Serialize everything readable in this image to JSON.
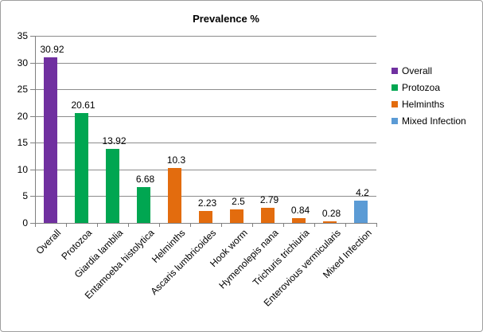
{
  "chart_data": {
    "type": "bar",
    "title": "Prevalence %",
    "xlabel": "",
    "ylabel": "",
    "categories": [
      "Overall",
      "Protozoa",
      "Giardia lamblia",
      "Entamoeba histolytica",
      "Helminths",
      "Ascaris lumbricoides",
      "Hook worm",
      "Hymenolepis nana",
      "Trichuris trichiuria",
      "Enterovious vermicularis",
      "Mixed Infection"
    ],
    "values": [
      30.92,
      20.61,
      13.92,
      6.68,
      10.3,
      2.23,
      2.5,
      2.79,
      0.84,
      0.28,
      4.2
    ],
    "bar_groups": [
      "Overall",
      "Protozoa",
      "Protozoa",
      "Protozoa",
      "Helminths",
      "Helminths",
      "Helminths",
      "Helminths",
      "Helminths",
      "Helminths",
      "Mixed Infection"
    ],
    "group_colors": {
      "Overall": "#7030A0",
      "Protozoa": "#00A651",
      "Helminths": "#E36C0E",
      "Mixed Infection": "#5B9BD5"
    },
    "legend": [
      {
        "label": "Overall",
        "color": "#7030A0"
      },
      {
        "label": "Protozoa",
        "color": "#00A651"
      },
      {
        "label": "Helminths",
        "color": "#E36C0E"
      },
      {
        "label": "Mixed Infection",
        "color": "#5B9BD5"
      }
    ],
    "legend_position": "right",
    "yticks": [
      0,
      5,
      10,
      15,
      20,
      25,
      30,
      35
    ],
    "ylim": [
      0,
      35
    ],
    "grid": true
  },
  "colors": {
    "gridline": "#8C8C8C",
    "axis": "#808080",
    "border": "#9E9E9E",
    "text": "#000000",
    "background": "#FFFFFF"
  }
}
